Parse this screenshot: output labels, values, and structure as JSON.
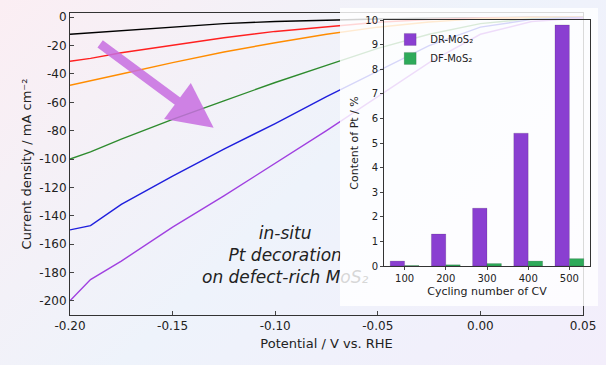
{
  "chart_data": [
    {
      "type": "line",
      "x": [
        -0.2,
        -0.19,
        -0.175,
        -0.15,
        -0.125,
        -0.1,
        -0.075,
        -0.05,
        -0.025,
        0,
        0.025,
        0.05
      ],
      "series": [
        {
          "color": "#000000",
          "values": [
            -12,
            -11,
            -9,
            -6.5,
            -4.5,
            -3,
            -2,
            -1.2,
            -0.6,
            -0.2,
            -0.05,
            0
          ]
        },
        {
          "color": "#ff2020",
          "values": [
            -31,
            -29,
            -25,
            -19.5,
            -14.5,
            -10,
            -6.5,
            -3.5,
            -1.6,
            -0.5,
            -0.1,
            0
          ]
        },
        {
          "color": "#ff8c00",
          "values": [
            -48,
            -45,
            -40,
            -32,
            -24.5,
            -18,
            -12,
            -7,
            -3.3,
            -1,
            -0.2,
            0
          ]
        },
        {
          "color": "#2e8b2e",
          "values": [
            -100,
            -95,
            -86,
            -72,
            -59,
            -46,
            -34,
            -22,
            -12,
            -4.5,
            -1,
            -0.1
          ]
        },
        {
          "color": "#1f1fdd",
          "values": [
            -150,
            -147,
            -132,
            -112,
            -93,
            -75,
            -56,
            -38,
            -20,
            -7,
            -1.5,
            -0.2
          ]
        },
        {
          "color": "#a040e0",
          "values": [
            -200,
            -185,
            -172,
            -148,
            -126,
            -103,
            -80,
            -56,
            -32,
            -12,
            -3,
            -0.5
          ]
        }
      ],
      "xlabel": "Potential / V vs. RHE",
      "ylabel": "Current density / mA cm⁻²",
      "xlim": [
        -0.2,
        0.05
      ],
      "xticks": [
        {
          "value": -0.2,
          "label": "-0.20"
        },
        -0.15,
        {
          "value": -0.1,
          "label": "-0.10"
        },
        -0.05,
        {
          "value": 0,
          "label": "0.00"
        },
        0.05
      ],
      "ylim": [
        -210,
        3
      ],
      "yticks": [
        -200,
        -180,
        -160,
        -140,
        -120,
        -100,
        -80,
        -60,
        -40,
        -20,
        0
      ],
      "grid": false,
      "annotations": [
        {
          "text": [
            "in-situ",
            "Pt decoration",
            "on defect-rich MoS₂"
          ]
        }
      ]
    },
    {
      "type": "bar",
      "categories": [
        "100",
        "200",
        "300",
        "400",
        "500"
      ],
      "series": [
        {
          "name": "DR-MoS₂",
          "color": "#8a3fd1",
          "values": [
            0.2,
            1.3,
            2.35,
            5.4,
            9.8
          ]
        },
        {
          "name": "DF-MoS₂",
          "color": "#2eaa5a",
          "values": [
            0.02,
            0.05,
            0.1,
            0.2,
            0.3
          ]
        }
      ],
      "xlabel": "Cycling number of CV",
      "ylabel": "Content of Pt / %",
      "ylim": [
        0,
        10
      ],
      "yticks": [
        0,
        1,
        2,
        3,
        4,
        5,
        6,
        7,
        8,
        9,
        10
      ],
      "legend": "upper left",
      "grid": false
    }
  ]
}
